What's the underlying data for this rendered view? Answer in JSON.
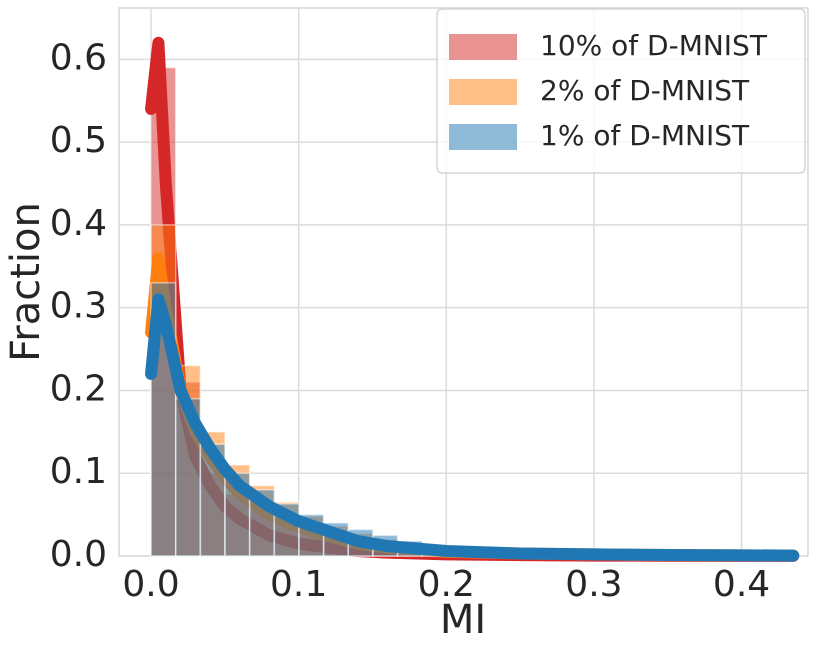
{
  "chart_data": {
    "type": "histogram",
    "xlabel": "MI",
    "ylabel": "Fraction",
    "xlim": [
      -0.0217,
      0.445
    ],
    "ylim": [
      0,
      0.662
    ],
    "xticks": [
      {
        "value": 0,
        "label": "0.0"
      },
      0.1,
      0.2,
      0.3,
      0.4
    ],
    "yticks": [
      {
        "value": 0,
        "label": "0.0"
      },
      0.1,
      0.2,
      0.3,
      0.4,
      0.5,
      0.6
    ],
    "grid": true,
    "legend": "upper right",
    "bins": [
      0,
      0.0167,
      0.0334,
      0.0501,
      0.0668,
      0.0835,
      0.1002,
      0.1169,
      0.1336,
      0.1503,
      0.167,
      0.1837,
      0.2004,
      0.2171,
      0.2338,
      0.2505,
      0.2672,
      0.2839,
      0.3006,
      0.3173,
      0.334,
      0.3507,
      0.3674,
      0.3841,
      0.4008,
      0.4175,
      0.4342
    ],
    "kde_x": [
      0,
      0.005,
      0.01,
      0.02,
      0.03,
      0.04,
      0.05,
      0.06,
      0.08,
      0.1,
      0.12,
      0.14,
      0.16,
      0.2,
      0.25,
      0.3,
      0.35,
      0.4,
      0.435
    ],
    "series": [
      {
        "name": "10% of D-MNIST",
        "color": "#d62728",
        "values": [
          0.59,
          0.21,
          0.1,
          0.075,
          0.055,
          0.04,
          0.03,
          0.022,
          0.016,
          0.012,
          0.009,
          0.007,
          0.005,
          0.004,
          0.003,
          0.0025,
          0.002,
          0.0015,
          0.001,
          0.001,
          0.0008,
          0.0006,
          0.0005,
          0.0004,
          0.0003,
          0.0002
        ],
        "kde": [
          0.54,
          0.62,
          0.45,
          0.2,
          0.12,
          0.085,
          0.06,
          0.045,
          0.025,
          0.015,
          0.01,
          0.006,
          0.004,
          0.002,
          0.001,
          0.0005,
          0.0003,
          0.0002,
          0.0001
        ]
      },
      {
        "name": "2% of D-MNIST",
        "color": "#ff7f0e",
        "values": [
          0.4,
          0.23,
          0.15,
          0.11,
          0.085,
          0.065,
          0.048,
          0.036,
          0.027,
          0.02,
          0.015,
          0.011,
          0.008,
          0.006,
          0.0045,
          0.0035,
          0.0027,
          0.002,
          0.0015,
          0.0012,
          0.001,
          0.0008,
          0.0006,
          0.0005,
          0.0004,
          0.0003
        ],
        "kde": [
          0.27,
          0.36,
          0.3,
          0.2,
          0.15,
          0.12,
          0.095,
          0.075,
          0.05,
          0.035,
          0.024,
          0.015,
          0.01,
          0.005,
          0.003,
          0.002,
          0.0012,
          0.0008,
          0.0005
        ]
      },
      {
        "name": "1% of D-MNIST",
        "color": "#1f77b4",
        "values": [
          0.33,
          0.19,
          0.135,
          0.1,
          0.08,
          0.063,
          0.05,
          0.04,
          0.032,
          0.025,
          0.018,
          0.012,
          0.008,
          0.006,
          0.0045,
          0.0035,
          0.0025,
          0.002,
          0.0015,
          0.001,
          0.0008,
          0.0006,
          0.0005,
          0.0004,
          0.0003,
          0.0002
        ],
        "kde": [
          0.22,
          0.31,
          0.28,
          0.2,
          0.16,
          0.13,
          0.105,
          0.085,
          0.06,
          0.042,
          0.03,
          0.018,
          0.012,
          0.006,
          0.003,
          0.002,
          0.0012,
          0.0008,
          0.0005
        ]
      }
    ]
  }
}
